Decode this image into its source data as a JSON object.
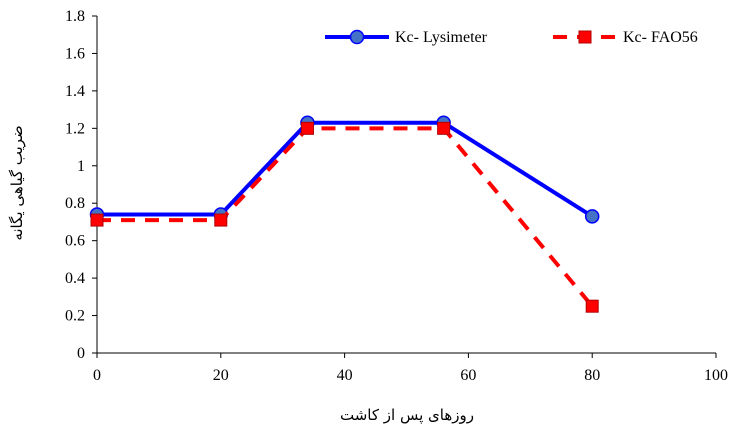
{
  "chart_data": {
    "type": "line",
    "xlabel": "روزهای پس از کاشت",
    "ylabel": "ضریب گیاهی یگانه",
    "xlim": [
      0,
      100
    ],
    "ylim": [
      0,
      1.8
    ],
    "xticks": [
      0,
      20,
      40,
      60,
      80,
      100
    ],
    "yticks": [
      0,
      0.2,
      0.4,
      0.6,
      0.8,
      1,
      1.2,
      1.4,
      1.6,
      1.8
    ],
    "grid": false,
    "legend_position": "top-right",
    "series": [
      {
        "name": "Kc- Lysimeter",
        "color": "#0000ff",
        "marker_color": "#4472c4",
        "line_style": "solid",
        "marker": "circle",
        "x": [
          0,
          20,
          34,
          56,
          80
        ],
        "y": [
          0.74,
          0.74,
          1.23,
          1.23,
          0.73
        ]
      },
      {
        "name": "Kc- FAO56",
        "color": "#ff0000",
        "line_style": "dashed",
        "marker": "square",
        "x": [
          0,
          20,
          34,
          56,
          80
        ],
        "y": [
          0.71,
          0.71,
          1.2,
          1.2,
          0.25
        ]
      }
    ]
  }
}
